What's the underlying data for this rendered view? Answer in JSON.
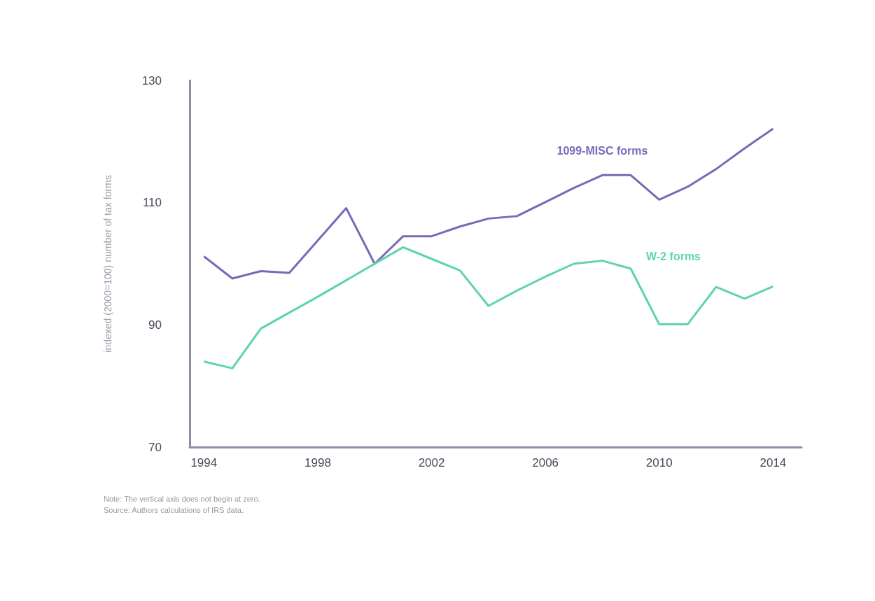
{
  "chart_data": {
    "type": "line",
    "ylabel": "indexed (2000=100) number of tax forms",
    "x": [
      1994,
      1995,
      1996,
      1997,
      1998,
      1999,
      2000,
      2001,
      2002,
      2003,
      2004,
      2005,
      2006,
      2007,
      2008,
      2009,
      2010,
      2011,
      2012,
      2013,
      2014
    ],
    "series": [
      {
        "name": "1099-MISC forms",
        "color": "#7b68b8",
        "values": [
          101.2,
          97.6,
          98.8,
          98.5,
          103.8,
          109.1,
          100.0,
          104.5,
          104.5,
          106.1,
          107.4,
          107.8,
          110.1,
          112.4,
          114.5,
          114.5,
          110.5,
          112.6,
          115.5,
          118.9,
          122.1
        ]
      },
      {
        "name": "W-2 forms",
        "color": "#5fd3b0",
        "values": [
          84.0,
          82.9,
          89.4,
          92.0,
          94.6,
          97.3,
          100.0,
          102.7,
          100.8,
          98.9,
          93.1,
          95.6,
          97.9,
          100.0,
          100.5,
          99.2,
          90.1,
          90.1,
          96.2,
          94.3,
          96.3
        ]
      }
    ],
    "xlim": [
      1993.5,
      2015
    ],
    "xticks": [
      1994,
      1998,
      2002,
      2006,
      2010,
      2014
    ],
    "ylim": [
      70,
      130
    ],
    "yticks": [
      70,
      90,
      110,
      130
    ],
    "grid": false,
    "legend": false,
    "marker": "none",
    "line_style": "solid",
    "annotations": [
      "Note: The vertical axis does not begin at zero.",
      "Source: Authors calculations of IRS data."
    ]
  }
}
